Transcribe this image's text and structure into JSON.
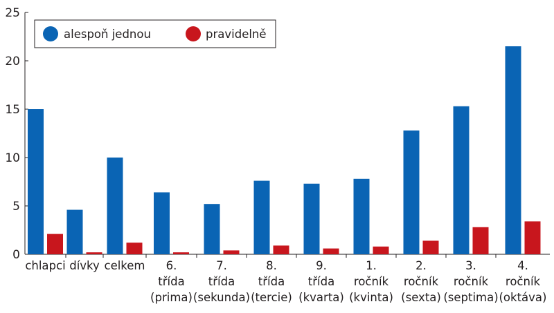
{
  "chart_data": {
    "type": "bar",
    "title": "",
    "xlabel": "",
    "ylabel": "",
    "ylim": [
      0,
      25
    ],
    "yticks": [
      0,
      5,
      10,
      15,
      20,
      25
    ],
    "grid": false,
    "legend_position": "top-left",
    "categories": [
      [
        "chlapci"
      ],
      [
        "dívky"
      ],
      [
        "celkem"
      ],
      [
        "6.",
        "třída",
        "(prima)"
      ],
      [
        "7.",
        "třída",
        "(sekunda)"
      ],
      [
        "8.",
        "třída",
        "(tercie)"
      ],
      [
        "9.",
        "třída",
        "(kvarta)"
      ],
      [
        "1.",
        "ročník",
        "(kvinta)"
      ],
      [
        "2.",
        "ročník",
        "(sexta)"
      ],
      [
        "3.",
        "ročník",
        "(septima)"
      ],
      [
        "4.",
        "ročník",
        "(oktáva)"
      ]
    ],
    "series": [
      {
        "name": "alespoň jednou",
        "color": "#0a64b4",
        "values": [
          15.0,
          4.6,
          10.0,
          6.4,
          5.2,
          7.6,
          7.3,
          7.8,
          12.8,
          15.3,
          21.5
        ]
      },
      {
        "name": "pravidelně",
        "color": "#c8161d",
        "values": [
          2.1,
          0.2,
          1.2,
          0.2,
          0.4,
          0.9,
          0.6,
          0.8,
          1.4,
          2.8,
          3.4
        ]
      }
    ]
  }
}
